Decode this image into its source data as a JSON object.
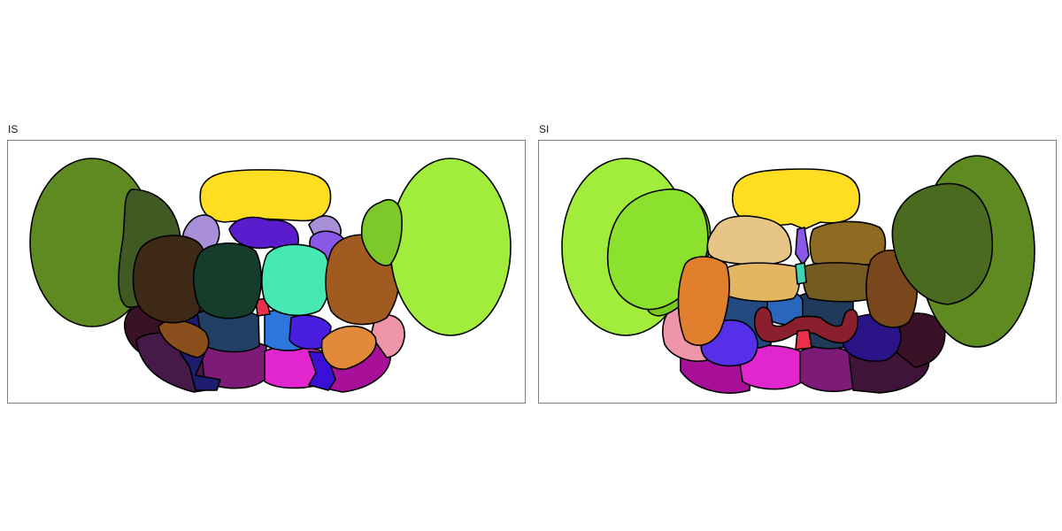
{
  "panels": [
    {
      "title": "IS",
      "regions": [
        {
          "name": "left-outer-lobe",
          "color": "#5f8a22"
        },
        {
          "name": "left-inner-lobe",
          "color": "#3f5a22"
        },
        {
          "name": "dorsal-cap",
          "color": "#ffdd22"
        },
        {
          "name": "dorsal-left-small",
          "color": "#a98fd8"
        },
        {
          "name": "dorsal-purple",
          "color": "#5a1ccc"
        },
        {
          "name": "dorsal-right-small",
          "color": "#a98fd8"
        },
        {
          "name": "right-violet",
          "color": "#8a58e6"
        },
        {
          "name": "left-brown",
          "color": "#3e2816"
        },
        {
          "name": "center-dark-green",
          "color": "#163d2c"
        },
        {
          "name": "center-turquoise",
          "color": "#48e8b4"
        },
        {
          "name": "right-brown",
          "color": "#a15a20"
        },
        {
          "name": "right-outer-lobe",
          "color": "#a2ec3c"
        },
        {
          "name": "right-inner-lobe",
          "color": "#7dc82a"
        },
        {
          "name": "ventral-left-maroon",
          "color": "#3a1225"
        },
        {
          "name": "ventral-left-plum",
          "color": "#451a48"
        },
        {
          "name": "ventral-left-orange",
          "color": "#8a4f1c"
        },
        {
          "name": "ventral-navy",
          "color": "#1d1c6e"
        },
        {
          "name": "ventral-slate",
          "color": "#223f66"
        },
        {
          "name": "ventral-mid-purple",
          "color": "#7e1a78"
        },
        {
          "name": "ventral-magenta",
          "color": "#e026cc"
        },
        {
          "name": "ventral-blue",
          "color": "#2d76de"
        },
        {
          "name": "ventral-indigo",
          "color": "#4a1ee0"
        },
        {
          "name": "ventral-right-orange",
          "color": "#e38a3a"
        },
        {
          "name": "ventral-right-pink",
          "color": "#ef95a8"
        },
        {
          "name": "ventral-right-magenta",
          "color": "#a8109a"
        },
        {
          "name": "ventral-small-violet",
          "color": "#3a10d8"
        },
        {
          "name": "center-red",
          "color": "#e8304a"
        }
      ]
    },
    {
      "title": "SI",
      "regions": [
        {
          "name": "left-outer-lobe",
          "color": "#a2ec3c"
        },
        {
          "name": "left-inner-lobe",
          "color": "#8ce02e"
        },
        {
          "name": "left-inner-lobe-edge",
          "color": "#78c81f"
        },
        {
          "name": "dorsal-cap",
          "color": "#ffdd22"
        },
        {
          "name": "dorsal-tan",
          "color": "#e7c587"
        },
        {
          "name": "dorsal-olive",
          "color": "#8e6a22"
        },
        {
          "name": "mid-tan",
          "color": "#e4b662"
        },
        {
          "name": "mid-olive-brown",
          "color": "#755a22"
        },
        {
          "name": "left-orange",
          "color": "#e07f2e"
        },
        {
          "name": "right-brown",
          "color": "#7a461c"
        },
        {
          "name": "right-outer-lobe",
          "color": "#5f8a22"
        },
        {
          "name": "right-inner-lobe",
          "color": "#4a6a1f"
        },
        {
          "name": "center-blue",
          "color": "#2a66bb"
        },
        {
          "name": "center-slate",
          "color": "#1f3a5a"
        },
        {
          "name": "center-teal",
          "color": "#3dd5b5"
        },
        {
          "name": "left-slate",
          "color": "#224a80"
        },
        {
          "name": "dark-red-arch",
          "color": "#8a1f2e"
        },
        {
          "name": "center-red",
          "color": "#e8304a"
        },
        {
          "name": "ventral-left-pink",
          "color": "#ef95a8"
        },
        {
          "name": "ventral-indigo",
          "color": "#5530e8"
        },
        {
          "name": "ventral-left-magenta",
          "color": "#a8109a"
        },
        {
          "name": "ventral-magenta",
          "color": "#e026cc"
        },
        {
          "name": "ventral-mid-purple",
          "color": "#7e1a78"
        },
        {
          "name": "ventral-navy",
          "color": "#2a1488"
        },
        {
          "name": "ventral-right-maroon",
          "color": "#3a1228"
        },
        {
          "name": "ventral-right-plum",
          "color": "#401438"
        },
        {
          "name": "small-violet",
          "color": "#8a58e6"
        }
      ]
    }
  ]
}
